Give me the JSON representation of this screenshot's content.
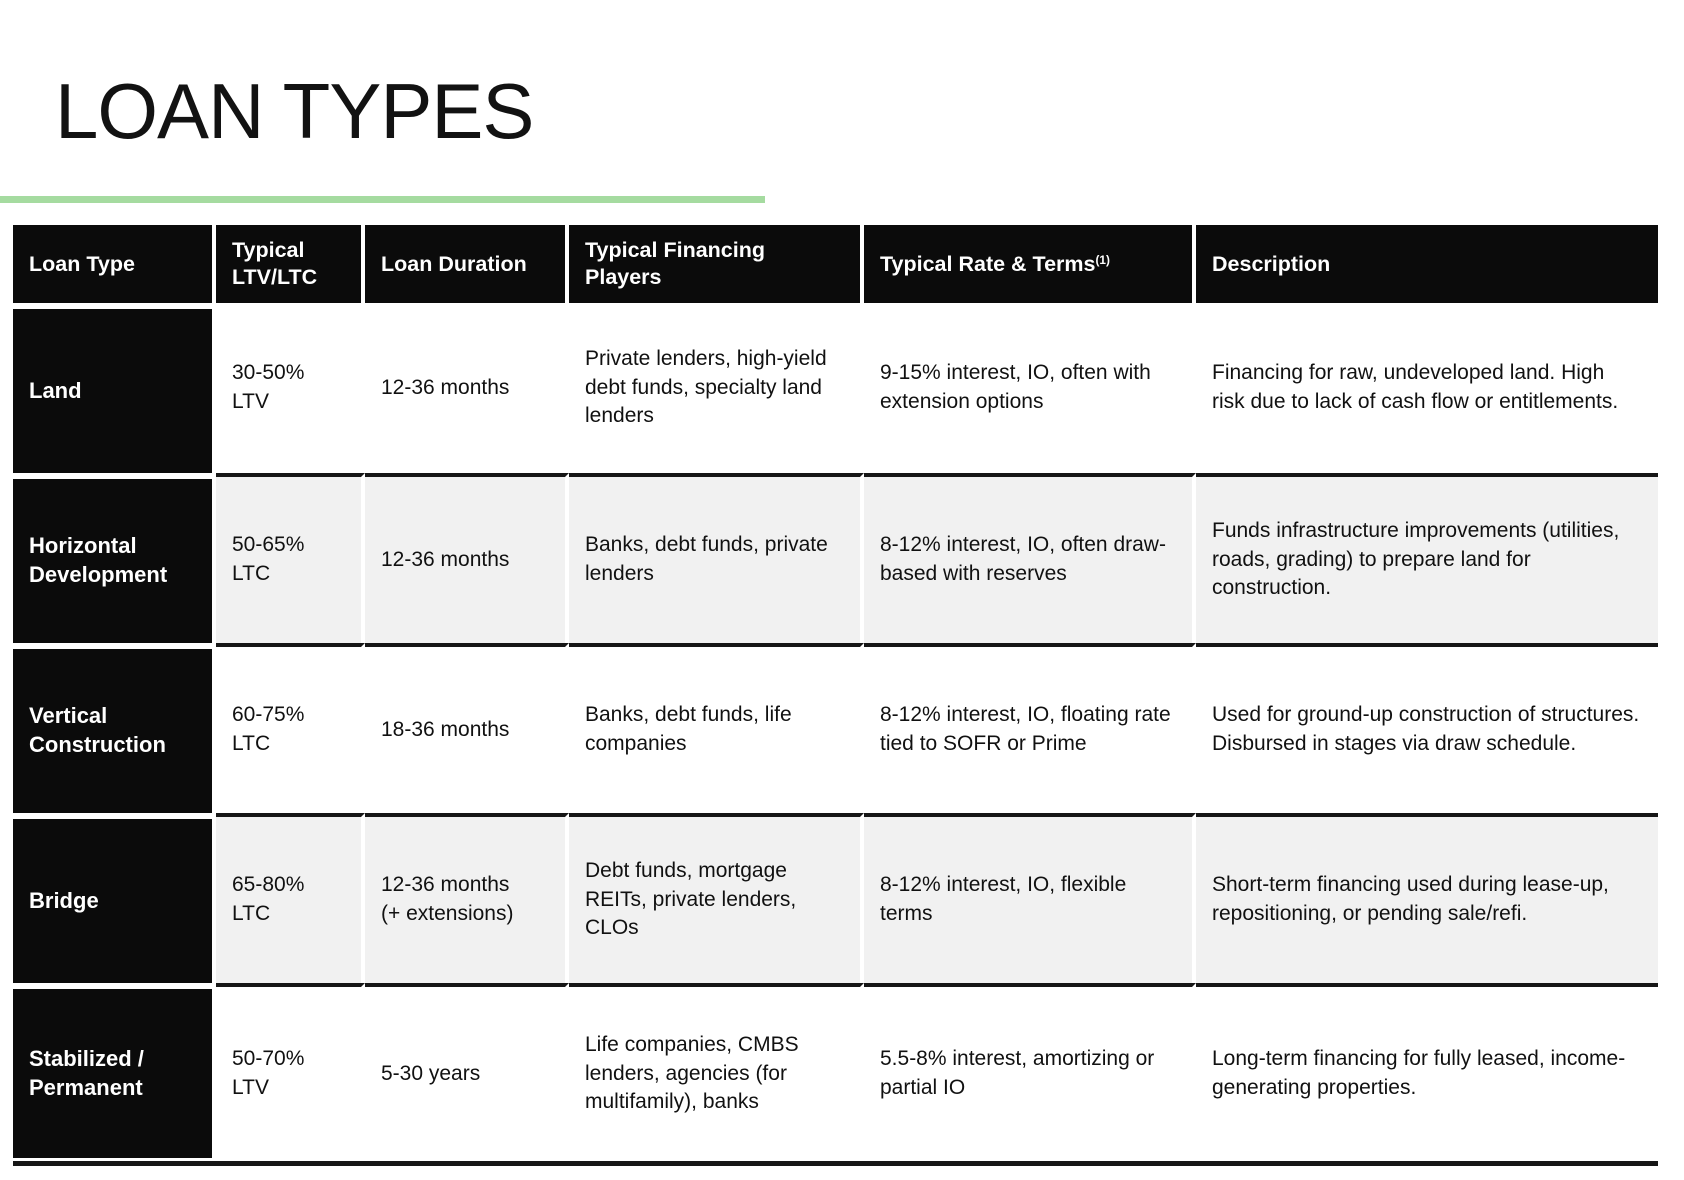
{
  "slide": {
    "title": "LOAN TYPES",
    "accent_color": "#a5dba0"
  },
  "table": {
    "columns": [
      {
        "label": "Loan Type"
      },
      {
        "label": "Typical\nLTV/LTC"
      },
      {
        "label": "Loan Duration"
      },
      {
        "label": "Typical Financing\nPlayers"
      },
      {
        "label": "Typical Rate & Terms",
        "footnote": "(1)"
      },
      {
        "label": "Description"
      }
    ],
    "rows": [
      {
        "loan_type": "Land",
        "ltv_ltc": "30-50%\nLTV",
        "duration": "12-36 months",
        "players": "Private lenders, high-yield debt funds, specialty land lenders",
        "rate_terms": "9-15% interest, IO, often with extension options",
        "description": "Financing for raw, undeveloped land. High risk due to lack of cash flow or entitlements."
      },
      {
        "loan_type": "Horizontal Development",
        "ltv_ltc": "50-65%\nLTC",
        "duration": "12-36 months",
        "players": "Banks, debt funds, private lenders",
        "rate_terms": "8-12% interest, IO, often draw-based with reserves",
        "description": "Funds infrastructure improvements (utilities, roads, grading) to prepare land for construction."
      },
      {
        "loan_type": "Vertical Construction",
        "ltv_ltc": "60-75%\nLTC",
        "duration": "18-36 months",
        "players": "Banks, debt funds, life companies",
        "rate_terms": "8-12% interest, IO, floating rate tied to SOFR or Prime",
        "description": "Used for ground-up construction of structures. Disbursed in stages via draw schedule."
      },
      {
        "loan_type": "Bridge",
        "ltv_ltc": "65-80%\nLTC",
        "duration": "12-36 months\n(+ extensions)",
        "players": "Debt funds, mortgage REITs, private lenders, CLOs",
        "rate_terms": "8-12% interest, IO, flexible terms",
        "description": "Short-term financing used during lease-up, repositioning, or pending sale/refi."
      },
      {
        "loan_type": "Stabilized / Permanent",
        "ltv_ltc": "50-70%\nLTV",
        "duration": "5-30 years",
        "players": "Life companies, CMBS lenders, agencies (for multifamily), banks",
        "rate_terms": "5.5-8% interest, amortizing or partial IO",
        "description": "Long-term financing for fully leased, income-generating properties."
      }
    ]
  }
}
